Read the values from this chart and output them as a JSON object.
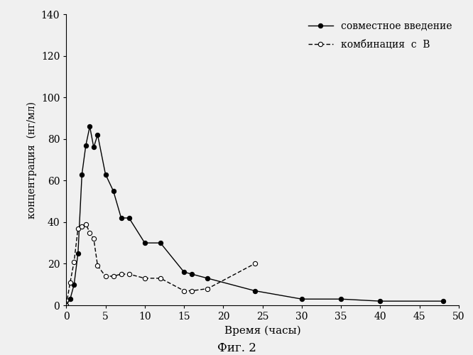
{
  "series1": {
    "label": "совместное введение",
    "x": [
      0,
      0.5,
      1,
      1.5,
      2,
      2.5,
      3,
      3.5,
      4,
      5,
      6,
      7,
      8,
      10,
      12,
      15,
      16,
      18,
      24,
      30,
      35,
      40,
      48
    ],
    "y": [
      0,
      3,
      10,
      25,
      63,
      77,
      86,
      76,
      82,
      63,
      55,
      42,
      42,
      30,
      30,
      16,
      15,
      13,
      7,
      3,
      3,
      2,
      2
    ],
    "marker": "o",
    "markerfacecolor": "#000000",
    "color": "#000000",
    "markersize": 4.5,
    "linestyle": "-"
  },
  "series2": {
    "label": "комбинация  с  В",
    "x": [
      0,
      0.5,
      1,
      1.5,
      2,
      2.5,
      3,
      3.5,
      4,
      5,
      6,
      7,
      8,
      10,
      12,
      15,
      16,
      18,
      24
    ],
    "y": [
      0,
      11,
      21,
      37,
      38,
      39,
      35,
      32,
      19,
      14,
      14,
      15,
      15,
      13,
      13,
      7,
      7,
      8,
      20
    ],
    "marker": "o",
    "markerfacecolor": "#ffffff",
    "color": "#000000",
    "markersize": 4.5,
    "linestyle": "--"
  },
  "xlabel": "Время (часы)",
  "ylabel": "концентрация  (нг/мл)",
  "xlim": [
    0,
    50
  ],
  "ylim": [
    0,
    140
  ],
  "xticks": [
    0,
    5,
    10,
    15,
    20,
    25,
    30,
    35,
    40,
    45,
    50
  ],
  "yticks": [
    0,
    20,
    40,
    60,
    80,
    100,
    120,
    140
  ],
  "figure_caption": "Фиг. 2",
  "background_color": "#f0f0f0",
  "legend_loc": "upper right"
}
